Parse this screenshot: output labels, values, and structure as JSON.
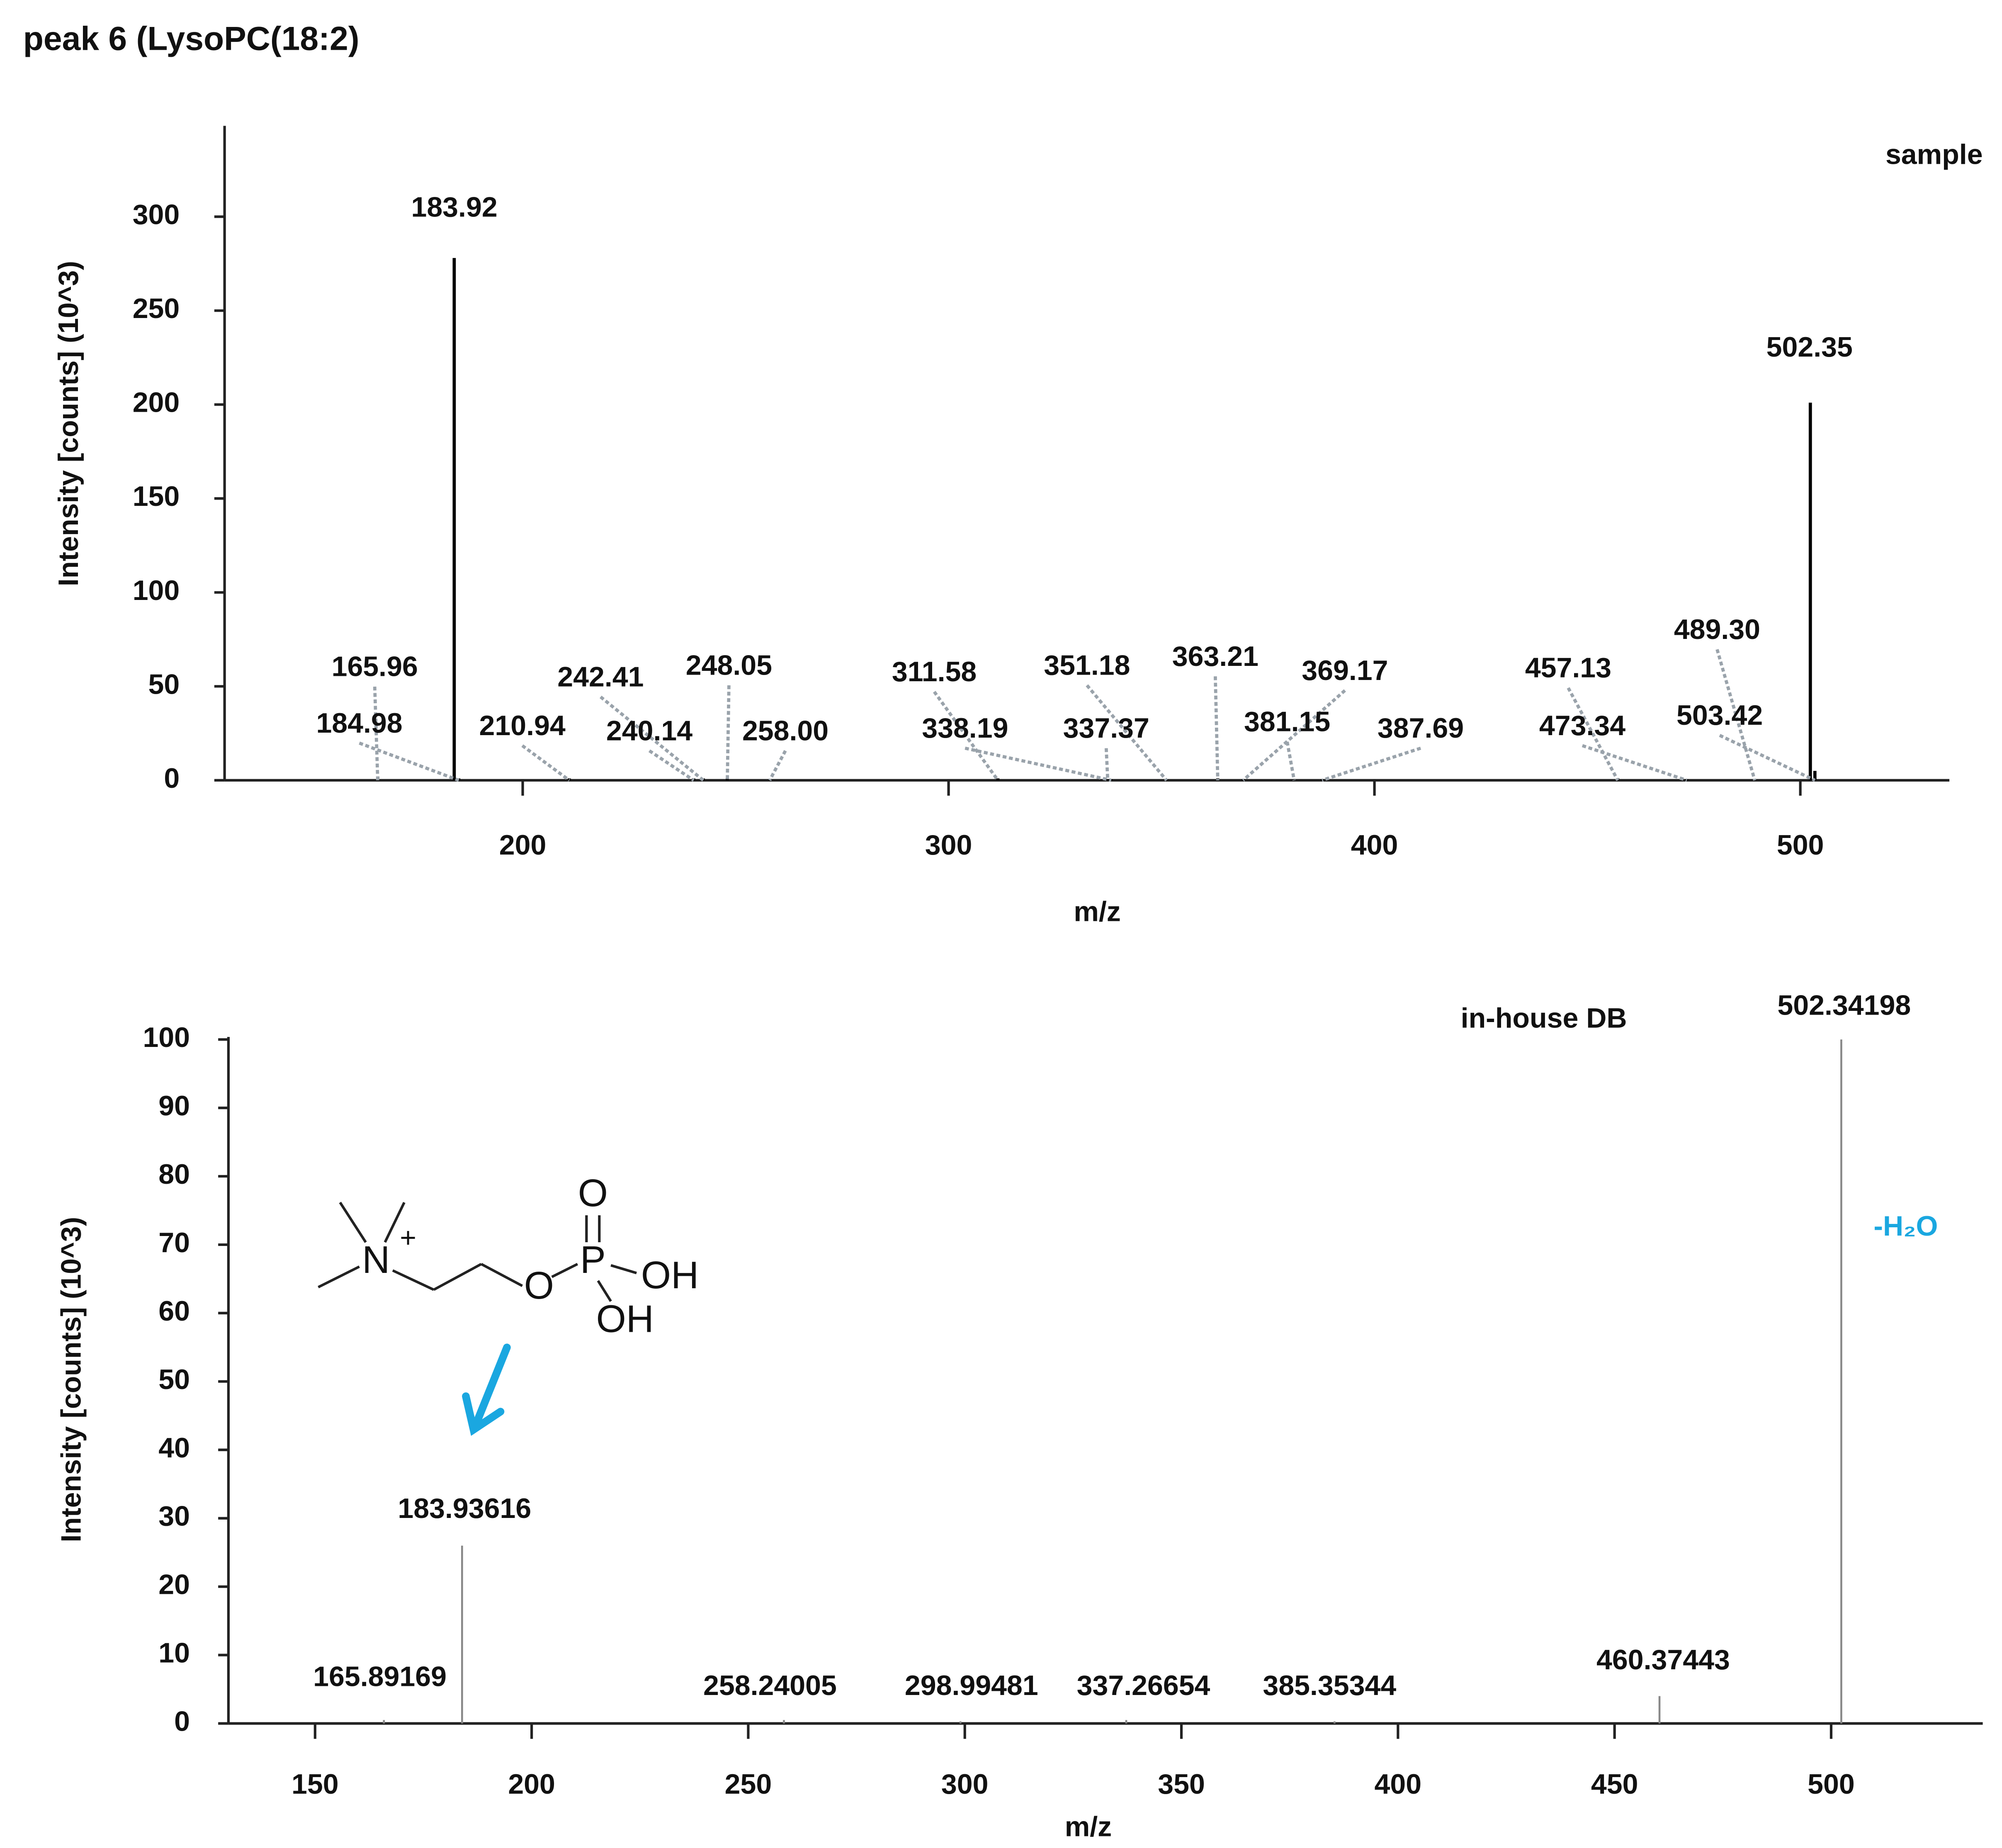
{
  "title": "peak 6 (LysoPC(18:2)",
  "structure": {
    "atoms": [
      "N",
      "+",
      "O",
      "P",
      "O",
      "OH",
      "OH"
    ]
  },
  "chart_data": [
    {
      "type": "bar",
      "series_label": "sample",
      "xlabel": "m/z",
      "ylabel": "Intensity [counts] (10^3)",
      "color": "#000000",
      "leader_color": "#9aa3ab",
      "x": [
        183.92,
        502.35,
        165.96,
        184.98,
        210.94,
        242.41,
        240.14,
        248.05,
        258.0,
        311.58,
        338.19,
        351.18,
        337.37,
        363.21,
        369.17,
        381.15,
        387.69,
        457.13,
        473.34,
        489.3,
        503.42
      ],
      "x_labels": [
        "183.92",
        "502.35",
        "165.96",
        "184.98",
        "210.94",
        "242.41",
        "240.14",
        "248.05",
        "258.00",
        "311.58",
        "338.19",
        "351.18",
        "337.37",
        "363.21",
        "369.17",
        "381.15",
        "387.69",
        "457.13",
        "473.34",
        "489.30",
        "503.42"
      ],
      "values": [
        278,
        201,
        2,
        1,
        1,
        1,
        1,
        1,
        0.5,
        1,
        0.5,
        0.5,
        0.5,
        1,
        0.5,
        0.5,
        0.5,
        1,
        0.5,
        0.5,
        5
      ],
      "xlim": [
        130,
        535
      ],
      "ylim": [
        0,
        347
      ],
      "xticks": [
        200,
        300,
        400,
        500
      ],
      "yticks": [
        0,
        50,
        100,
        150,
        200,
        250,
        300
      ]
    },
    {
      "type": "bar",
      "series_label": "in-house DB",
      "xlabel": "m/z",
      "ylabel": "Intensity [counts] (10^3)",
      "color": "#888888",
      "annotation": "-H₂O",
      "annotation_color": "#1aa7e0",
      "x": [
        502.34198,
        183.93616,
        165.89169,
        258.24005,
        298.99481,
        337.26654,
        385.35344,
        460.37443
      ],
      "x_labels": [
        "502.34198",
        "183.93616",
        "165.89169",
        "258.24005",
        "298.99481",
        "337.26654",
        "385.35344",
        "460.37443"
      ],
      "values": [
        100,
        26,
        0.5,
        0.5,
        0.3,
        0.5,
        0.3,
        4
      ],
      "xlim": [
        130,
        535
      ],
      "ylim": [
        0,
        100
      ],
      "xticks": [
        150,
        200,
        250,
        300,
        350,
        400,
        450,
        500
      ],
      "yticks": [
        0,
        10,
        20,
        30,
        40,
        50,
        60,
        70,
        80,
        90,
        100
      ]
    }
  ]
}
